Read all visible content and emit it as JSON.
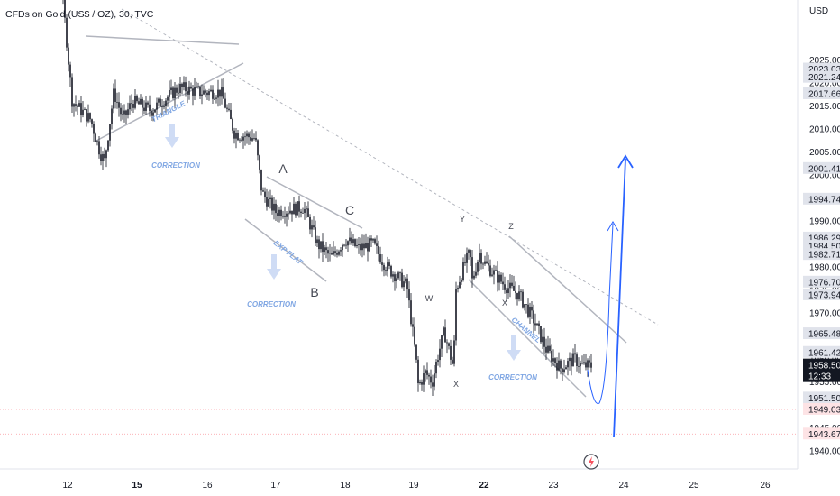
{
  "chart_data": {
    "type": "candlestick",
    "title": "CFDs on Gold (US$ / OZ), 30, TVC",
    "currency": "USD",
    "ylim": [
      1937.5,
      2026.5
    ],
    "y_ticks": [
      1940,
      1945,
      1950,
      1955,
      1960,
      1965,
      1970,
      1975,
      1980,
      1985,
      1990,
      1995,
      2000,
      2005,
      2010,
      2015,
      2020,
      2025
    ],
    "x_ticks": [
      {
        "label": "12",
        "bold": false
      },
      {
        "label": "15",
        "bold": true
      },
      {
        "label": "16",
        "bold": false
      },
      {
        "label": "17",
        "bold": false
      },
      {
        "label": "18",
        "bold": false
      },
      {
        "label": "19",
        "bold": false
      },
      {
        "label": "22",
        "bold": true
      },
      {
        "label": "23",
        "bold": false
      },
      {
        "label": "24",
        "bold": false
      },
      {
        "label": "25",
        "bold": false
      },
      {
        "label": "26",
        "bold": false
      }
    ],
    "price_path": [
      [
        12.0,
        2027
      ],
      [
        12.2,
        2016
      ],
      [
        12.6,
        2014
      ],
      [
        13.0,
        2012
      ],
      [
        13.4,
        2005
      ],
      [
        13.6,
        2003
      ],
      [
        14.0,
        2018
      ],
      [
        14.4,
        2012
      ],
      [
        14.8,
        2016
      ],
      [
        15.2,
        2014
      ],
      [
        15.6,
        2019
      ],
      [
        15.9,
        2018
      ],
      [
        16.2,
        2018
      ],
      [
        16.4,
        2009
      ],
      [
        16.7,
        2008
      ],
      [
        16.8,
        1996
      ],
      [
        17.0,
        1992
      ],
      [
        17.4,
        1993
      ],
      [
        17.6,
        1985
      ],
      [
        17.8,
        1982
      ],
      [
        18.0,
        1986
      ],
      [
        18.2,
        1984
      ],
      [
        18.4,
        1985
      ],
      [
        18.6,
        1980
      ],
      [
        18.9,
        1976
      ],
      [
        19.1,
        1960
      ],
      [
        19.2,
        1954
      ],
      [
        19.5,
        1957
      ],
      [
        19.8,
        1955
      ],
      [
        20.0,
        1960
      ],
      [
        20.3,
        1966
      ],
      [
        20.5,
        1962
      ],
      [
        20.7,
        1958
      ],
      [
        20.8,
        1975
      ],
      [
        21.0,
        1978
      ],
      [
        21.2,
        1981
      ],
      [
        21.4,
        1983
      ],
      [
        21.5,
        1977
      ],
      [
        21.8,
        1983
      ],
      [
        22.0,
        1981
      ],
      [
        22.3,
        1976
      ],
      [
        22.5,
        1974
      ],
      [
        22.7,
        1969
      ],
      [
        22.9,
        1962
      ],
      [
        23.1,
        1958
      ],
      [
        23.3,
        1960
      ],
      [
        23.4,
        1958.5
      ]
    ],
    "price_labels": [
      {
        "value": 2023.03,
        "label": "2023.03",
        "style": "gray"
      },
      {
        "value": 2021.24,
        "label": "2021.24",
        "style": "gray"
      },
      {
        "value": 2017.66,
        "label": "2017.66",
        "style": "gray"
      },
      {
        "value": 2001.41,
        "label": "2001.41",
        "style": "gray"
      },
      {
        "value": 1994.74,
        "label": "1994.74",
        "style": "gray"
      },
      {
        "value": 1986.29,
        "label": "1986.29",
        "style": "gray"
      },
      {
        "value": 1984.5,
        "label": "1984.50",
        "style": "gray"
      },
      {
        "value": 1982.71,
        "label": "1982.71",
        "style": "gray"
      },
      {
        "value": 1976.7,
        "label": "1976.70",
        "style": "gray"
      },
      {
        "value": 1973.94,
        "label": "1973.94",
        "style": "gray"
      },
      {
        "value": 1965.48,
        "label": "1965.48",
        "style": "gray"
      },
      {
        "value": 1961.42,
        "label": "1961.42",
        "style": "gray"
      },
      {
        "value": 1951.5,
        "label": "1951.50",
        "style": "gray"
      },
      {
        "value": 1949.03,
        "label": "1949.03",
        "style": "red"
      },
      {
        "value": 1943.67,
        "label": "1943.67",
        "style": "red"
      }
    ],
    "current_price": {
      "value": 1958.5,
      "label": "1958.50",
      "countdown": "12:33"
    },
    "annotations": {
      "triangle": "TRIANGLE",
      "exp_flat": "EXP FLAT",
      "channel": "CHANNEL",
      "correction": "CORRECTION",
      "wave_a": "A",
      "wave_b": "B",
      "wave_c": "C",
      "wave_w": "W",
      "wave_x": "X",
      "wave_y": "Y",
      "wave_z": "Z"
    },
    "colors": {
      "candle": "#131722",
      "trendline": "#b2b5be",
      "projection": "#2962ff",
      "annotation_text": "#7fa6e3",
      "red_line": "#f7525f"
    }
  }
}
